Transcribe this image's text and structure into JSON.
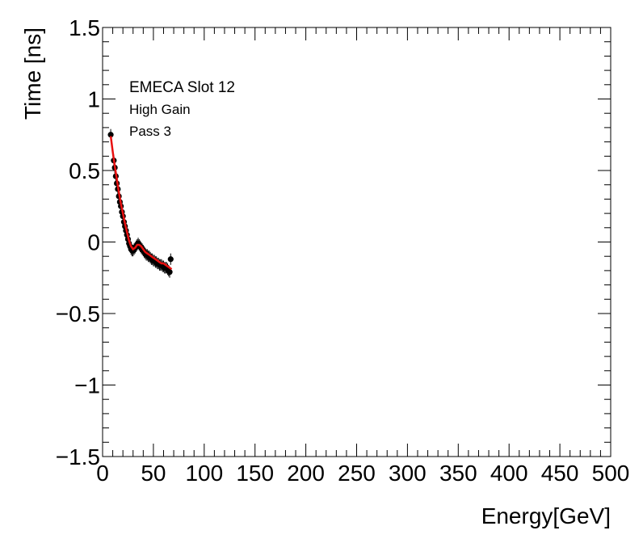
{
  "chart_data": {
    "type": "scatter",
    "title": "",
    "xlabel": "Energy[GeV]",
    "ylabel": "Time [ns]",
    "xlim": [
      0,
      500
    ],
    "ylim": [
      -1.5,
      1.5
    ],
    "grid": false,
    "xticks": [
      0,
      50,
      100,
      150,
      200,
      250,
      300,
      350,
      400,
      450,
      500
    ],
    "xtick_labels": [
      "0",
      "50",
      "100",
      "150",
      "200",
      "250",
      "300",
      "350",
      "400",
      "450",
      "500"
    ],
    "yticks": [
      -1.5,
      -1,
      -0.5,
      0,
      0.5,
      1,
      1.5
    ],
    "ytick_labels": [
      "−1.5",
      "−1",
      "−0.5",
      "0",
      "0.5",
      "1",
      "1.5"
    ],
    "annotations": [
      "EMECA Slot 12",
      "High Gain",
      "Pass 3"
    ],
    "colors": {
      "fit": "#e81010",
      "points": "#000000",
      "axes": "#000000"
    },
    "series": [
      {
        "name": "data",
        "x": [
          8,
          11,
          12,
          13,
          14,
          15,
          16,
          17,
          18,
          19,
          20,
          21,
          22,
          23,
          24,
          25,
          26,
          27,
          28,
          29,
          30,
          31,
          32,
          33,
          34,
          35,
          36,
          37,
          38,
          39,
          40,
          41,
          42,
          43,
          44,
          45,
          46,
          47,
          48,
          49,
          50,
          51,
          52,
          53,
          54,
          55,
          56,
          57,
          58,
          59,
          60,
          61,
          62,
          63,
          64,
          65,
          66,
          67
        ],
        "y": [
          0.75,
          0.57,
          0.52,
          0.46,
          0.41,
          0.37,
          0.32,
          0.28,
          0.25,
          0.21,
          0.18,
          0.14,
          0.11,
          0.08,
          0.05,
          0.02,
          -0.01,
          -0.03,
          -0.05,
          -0.06,
          -0.06,
          -0.05,
          -0.04,
          -0.03,
          -0.02,
          -0.01,
          -0.02,
          -0.03,
          -0.04,
          -0.05,
          -0.06,
          -0.07,
          -0.08,
          -0.09,
          -0.09,
          -0.1,
          -0.1,
          -0.11,
          -0.12,
          -0.12,
          -0.13,
          -0.13,
          -0.14,
          -0.14,
          -0.15,
          -0.15,
          -0.16,
          -0.16,
          -0.16,
          -0.17,
          -0.17,
          -0.18,
          -0.18,
          -0.18,
          -0.19,
          -0.2,
          -0.21,
          -0.12
        ],
        "yerr": 0.04
      },
      {
        "name": "fit",
        "x": [
          8,
          10,
          12,
          14,
          16,
          18,
          20,
          22,
          24,
          26,
          28,
          30,
          32,
          34,
          36,
          38,
          40,
          42,
          44,
          46,
          48,
          50,
          52,
          54,
          56,
          58,
          60,
          62,
          64,
          66,
          68
        ],
        "y": [
          0.74,
          0.63,
          0.53,
          0.44,
          0.35,
          0.27,
          0.2,
          0.13,
          0.07,
          0.01,
          -0.03,
          -0.05,
          -0.04,
          -0.02,
          -0.02,
          -0.03,
          -0.05,
          -0.07,
          -0.08,
          -0.09,
          -0.1,
          -0.11,
          -0.12,
          -0.13,
          -0.14,
          -0.15,
          -0.15,
          -0.16,
          -0.17,
          -0.18,
          -0.19
        ]
      }
    ]
  }
}
